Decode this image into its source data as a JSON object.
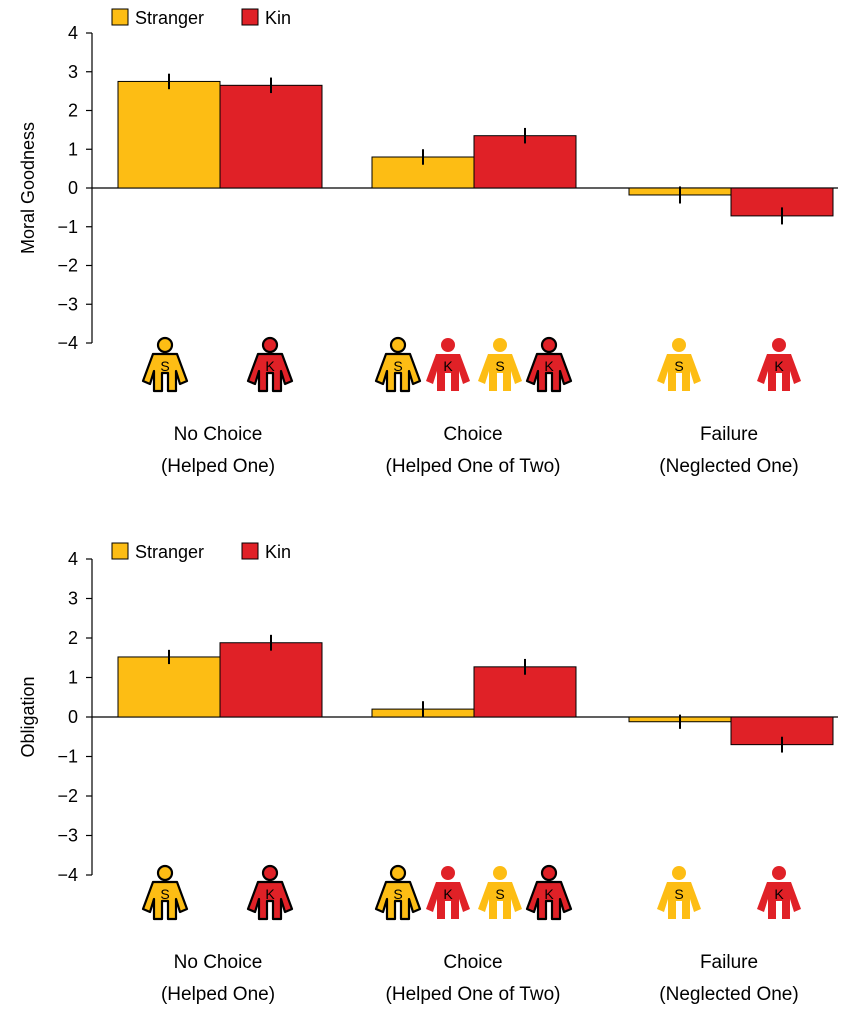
{
  "colors": {
    "stranger": "#FDBD14",
    "kin": "#E02127",
    "outline": "#000000"
  },
  "icon_letters": {
    "stranger": "S",
    "kin": "K"
  },
  "chart_data": [
    {
      "type": "bar",
      "ylabel": "Moral Goodness",
      "ylim": [
        -4,
        4
      ],
      "yticks": [
        4,
        3,
        2,
        1,
        0,
        -1,
        -2,
        -3,
        -4
      ],
      "ytick_labels": [
        "4",
        "3",
        "2",
        "1",
        "0",
        "−1",
        "−2",
        "−3",
        "−4"
      ],
      "legend": {
        "position": "top-left",
        "entries": [
          "Stranger",
          "Kin"
        ]
      },
      "categories": [
        {
          "line1": "No Choice",
          "line2": "(Helped One)"
        },
        {
          "line1": "Choice",
          "line2": "(Helped One of Two)"
        },
        {
          "line1": "Failure",
          "line2": "(Neglected One)"
        }
      ],
      "series": [
        {
          "name": "Stranger",
          "values": [
            2.75,
            0.8,
            -0.18
          ],
          "errors": [
            0.2,
            0.2,
            0.22
          ]
        },
        {
          "name": "Kin",
          "values": [
            2.65,
            1.35,
            -0.72
          ],
          "errors": [
            0.2,
            0.2,
            0.22
          ]
        }
      ]
    },
    {
      "type": "bar",
      "ylabel": "Obligation",
      "ylim": [
        -4,
        4
      ],
      "yticks": [
        4,
        3,
        2,
        1,
        0,
        -1,
        -2,
        -3,
        -4
      ],
      "ytick_labels": [
        "4",
        "3",
        "2",
        "1",
        "0",
        "−1",
        "−2",
        "−3",
        "−4"
      ],
      "legend": {
        "position": "top-left",
        "entries": [
          "Stranger",
          "Kin"
        ]
      },
      "categories": [
        {
          "line1": "No Choice",
          "line2": "(Helped One)"
        },
        {
          "line1": "Choice",
          "line2": "(Helped One of Two)"
        },
        {
          "line1": "Failure",
          "line2": "(Neglected One)"
        }
      ],
      "series": [
        {
          "name": "Stranger",
          "values": [
            1.52,
            0.2,
            -0.12
          ],
          "errors": [
            0.18,
            0.2,
            0.18
          ]
        },
        {
          "name": "Kin",
          "values": [
            1.88,
            1.27,
            -0.7
          ],
          "errors": [
            0.2,
            0.2,
            0.2
          ]
        }
      ]
    }
  ]
}
